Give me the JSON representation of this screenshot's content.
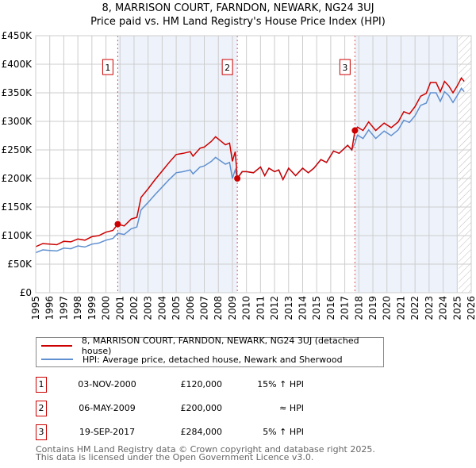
{
  "title_line1": "8, MARRISON COURT, FARNDON, NEWARK, NG24 3UJ",
  "title_line2": "Price paid vs. HM Land Registry's House Price Index (HPI)",
  "colors": {
    "property": "#cc0000",
    "hpi": "#6090d0",
    "shade": "#eef3fb",
    "grid": "#cccccc"
  },
  "chart_data": {
    "type": "line",
    "xlim": [
      1995,
      2026
    ],
    "ylim": [
      0,
      450000
    ],
    "y_ticks": [
      0,
      50000,
      100000,
      150000,
      200000,
      250000,
      300000,
      350000,
      400000,
      450000
    ],
    "y_tick_labels": [
      "£0",
      "£50K",
      "£100K",
      "£150K",
      "£200K",
      "£250K",
      "£300K",
      "£350K",
      "£400K",
      "£450K"
    ],
    "x_ticks": [
      1995,
      1996,
      1997,
      1998,
      1999,
      2000,
      2001,
      2002,
      2003,
      2004,
      2005,
      2006,
      2007,
      2008,
      2009,
      2010,
      2011,
      2012,
      2013,
      2014,
      2015,
      2016,
      2017,
      2018,
      2019,
      2020,
      2021,
      2022,
      2023,
      2024,
      2025,
      2026
    ],
    "x_tick_labels": [
      "1995",
      "1996",
      "1997",
      "1998",
      "1999",
      "2000",
      "2001",
      "2002",
      "2003",
      "2004",
      "2005",
      "2006",
      "2007",
      "2008",
      "2009",
      "2010",
      "2011",
      "2012",
      "2013",
      "2014",
      "2015",
      "2016",
      "2017",
      "2018",
      "2019",
      "2020",
      "2021",
      "2022",
      "2023",
      "2024",
      "2025",
      "2026"
    ],
    "grid": true,
    "shaded_ranges": [
      [
        2000.84,
        2009.35
      ],
      [
        2017.72,
        2025.0
      ]
    ],
    "hatched_from": 2025.1,
    "series": [
      {
        "name": "8, MARRISON COURT, FARNDON, NEWARK, NG24 3UJ (detached house)",
        "x": [
          1995,
          1995.5,
          1996,
          1996.5,
          1997,
          1997.5,
          1998,
          1998.5,
          1999,
          1999.5,
          2000,
          2000.5,
          2000.84,
          2001.3,
          2001.8,
          2002.2,
          2002.5,
          2003,
          2003.5,
          2004,
          2004.5,
          2005,
          2005.5,
          2006,
          2006.2,
          2006.7,
          2007,
          2007.5,
          2007.8,
          2008.2,
          2008.5,
          2008.8,
          2009.0,
          2009.2,
          2009.35,
          2009.7,
          2010,
          2010.5,
          2011,
          2011.3,
          2011.6,
          2012,
          2012.3,
          2012.6,
          2013,
          2013.5,
          2014,
          2014.4,
          2014.8,
          2015.3,
          2015.7,
          2016.2,
          2016.6,
          2017.2,
          2017.5,
          2017.72,
          2017.9,
          2018.3,
          2018.7,
          2019.2,
          2019.8,
          2020.3,
          2020.8,
          2021.2,
          2021.6,
          2022,
          2022.4,
          2022.8,
          2023.1,
          2023.5,
          2023.8,
          2024.1,
          2024.4,
          2024.7,
          2025.0,
          2025.3,
          2025.5
        ],
        "y": [
          80500,
          86000,
          85000,
          84000,
          90000,
          89000,
          94000,
          92000,
          98000,
          100000,
          106000,
          109000,
          120000,
          117000,
          129000,
          132000,
          167000,
          182000,
          198000,
          213000,
          228000,
          242000,
          244000,
          247000,
          239000,
          253000,
          255000,
          265000,
          273000,
          265000,
          259000,
          262000,
          230000,
          247000,
          200000,
          212000,
          212000,
          210000,
          220000,
          205000,
          218000,
          212000,
          215000,
          198000,
          218000,
          205000,
          218000,
          210000,
          218000,
          233000,
          228000,
          248000,
          244000,
          258000,
          250000,
          284000,
          290000,
          284000,
          299000,
          284000,
          297000,
          289000,
          299000,
          317000,
          313000,
          326000,
          344000,
          349000,
          368000,
          368000,
          352000,
          370000,
          362000,
          350000,
          362000,
          376000,
          370000
        ]
      },
      {
        "name": "HPI: Average price, detached house, Newark and Sherwood",
        "x": [
          1995,
          1995.5,
          1996,
          1996.5,
          1997,
          1997.5,
          1998,
          1998.5,
          1999,
          1999.5,
          2000,
          2000.5,
          2000.84,
          2001.3,
          2001.8,
          2002.2,
          2002.5,
          2003,
          2003.5,
          2004,
          2004.5,
          2005,
          2005.5,
          2006,
          2006.2,
          2006.7,
          2007,
          2007.5,
          2007.8,
          2008.2,
          2008.5,
          2008.8,
          2009.0,
          2009.2,
          2009.35,
          2009.7,
          2010,
          2010.5,
          2011,
          2011.3,
          2011.6,
          2012,
          2012.3,
          2012.6,
          2013,
          2013.5,
          2014,
          2014.4,
          2014.8,
          2015.3,
          2015.7,
          2016.2,
          2016.6,
          2017.2,
          2017.5,
          2017.72,
          2017.9,
          2018.3,
          2018.7,
          2019.2,
          2019.8,
          2020.3,
          2020.8,
          2021.2,
          2021.6,
          2022,
          2022.4,
          2022.8,
          2023.1,
          2023.5,
          2023.8,
          2024.1,
          2024.4,
          2024.7,
          2025.0,
          2025.3,
          2025.5
        ],
        "y": [
          70000,
          75000,
          74000,
          73000,
          78000,
          77000,
          82000,
          80000,
          85000,
          87000,
          92000,
          95000,
          104000,
          102000,
          112000,
          115000,
          145000,
          158000,
          172000,
          185000,
          198000,
          210000,
          212000,
          215000,
          208000,
          220000,
          222000,
          230000,
          237000,
          230000,
          225000,
          228000,
          200000,
          215000,
          200000,
          212000,
          212000,
          210000,
          220000,
          205000,
          218000,
          212000,
          215000,
          198000,
          218000,
          205000,
          218000,
          210000,
          218000,
          233000,
          228000,
          248000,
          244000,
          258000,
          250000,
          262000,
          276000,
          270000,
          285000,
          270000,
          283000,
          275000,
          285000,
          302000,
          298000,
          310000,
          328000,
          332000,
          350000,
          350000,
          335000,
          352000,
          345000,
          333000,
          345000,
          358000,
          352000
        ]
      }
    ],
    "sales": [
      {
        "label": "1",
        "date": "03-NOV-2000",
        "x": 2000.84,
        "price": 120000,
        "price_text": "£120,000",
        "hpi_text": "15% ↑ HPI"
      },
      {
        "label": "2",
        "date": "06-MAY-2009",
        "x": 2009.35,
        "price": 200000,
        "price_text": "£200,000",
        "hpi_text": "≈ HPI"
      },
      {
        "label": "3",
        "date": "19-SEP-2017",
        "x": 2017.72,
        "price": 284000,
        "price_text": "£284,000",
        "hpi_text": "5% ↑ HPI"
      }
    ]
  },
  "legend": {
    "property": "8, MARRISON COURT, FARNDON, NEWARK, NG24 3UJ (detached house)",
    "hpi": "HPI: Average price, detached house, Newark and Sherwood"
  },
  "footer": {
    "line1": "Contains HM Land Registry data © Crown copyright and database right 2025.",
    "line2": "This data is licensed under the Open Government Licence v3.0."
  }
}
